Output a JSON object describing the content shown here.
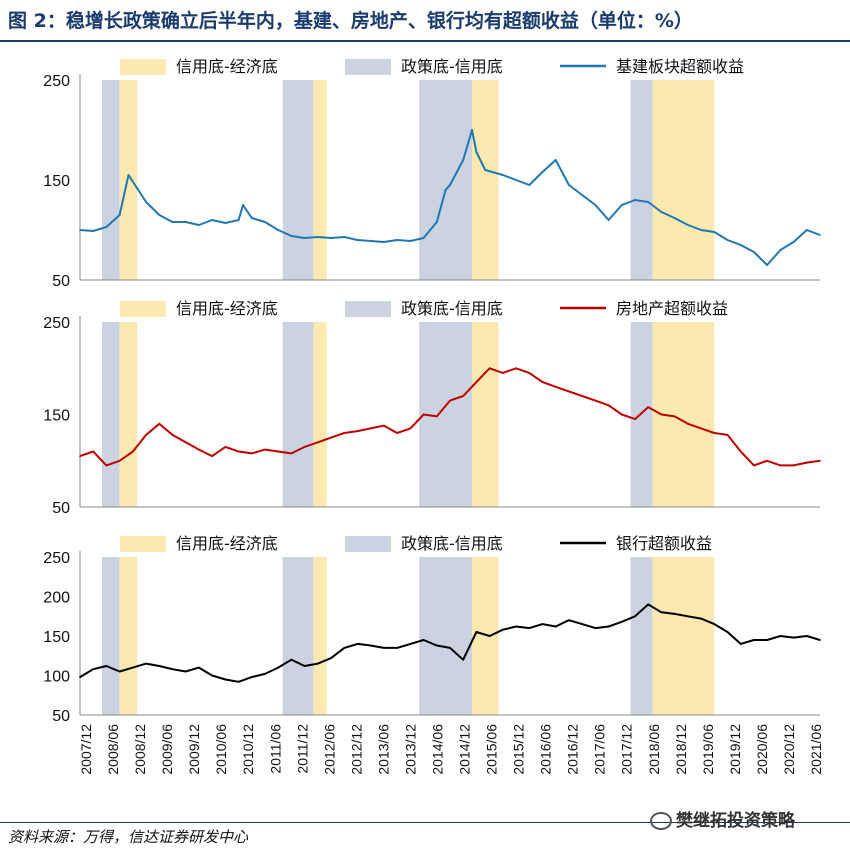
{
  "title": "图 2：稳增长政策确立后半年内，基建、房地产、银行均有超额收益（单位：%）",
  "source": "资料来源：万得，信达证券研发中心",
  "watermark": "樊继拓投资策略",
  "colors": {
    "title": "#1a3b6e",
    "credit_econ_band": "#fce9b0",
    "policy_credit_band": "#ccd3e0",
    "infra_line": "#1f77b4",
    "realestate_line": "#c00000",
    "bank_line": "#000000"
  },
  "chart_data": {
    "type": "line",
    "x_tick_labels": [
      "2007/12",
      "2008/06",
      "2008/12",
      "2009/06",
      "2009/12",
      "2010/06",
      "2010/12",
      "2011/06",
      "2011/12",
      "2012/06",
      "2012/12",
      "2013/06",
      "2013/12",
      "2014/06",
      "2014/12",
      "2015/06",
      "2015/12",
      "2016/06",
      "2016/12",
      "2017/06",
      "2017/12",
      "2018/06",
      "2018/12",
      "2019/06",
      "2019/12",
      "2020/06",
      "2020/12",
      "2021/06"
    ],
    "x_range": [
      "2007-12",
      "2021-12"
    ],
    "shaded_periods": {
      "policy_to_credit": [
        [
          "2008-05",
          "2008-09"
        ],
        [
          "2011-10",
          "2012-05"
        ],
        [
          "2014-05",
          "2015-05"
        ],
        [
          "2018-05",
          "2018-10"
        ]
      ],
      "credit_to_econ": [
        [
          "2008-09",
          "2009-01"
        ],
        [
          "2012-05",
          "2012-08"
        ],
        [
          "2015-05",
          "2015-11"
        ],
        [
          "2018-10",
          "2019-12"
        ]
      ]
    },
    "panels": [
      {
        "legend": [
          "信用底-经济底",
          "政策底-信用底",
          "基建板块超额收益"
        ],
        "yticks": [
          "250",
          "150",
          "50"
        ],
        "ylim": [
          50,
          250
        ],
        "series": {
          "name": "基建板块超额收益",
          "x": [
            "2007-12",
            "2008-03",
            "2008-06",
            "2008-09",
            "2008-11",
            "2009-03",
            "2009-06",
            "2009-09",
            "2009-12",
            "2010-03",
            "2010-06",
            "2010-09",
            "2010-12",
            "2011-01",
            "2011-03",
            "2011-06",
            "2011-09",
            "2011-12",
            "2012-03",
            "2012-06",
            "2012-09",
            "2012-12",
            "2013-03",
            "2013-06",
            "2013-09",
            "2013-12",
            "2014-03",
            "2014-06",
            "2014-09",
            "2014-11",
            "2014-12",
            "2015-03",
            "2015-05",
            "2015-06",
            "2015-08",
            "2015-12",
            "2016-03",
            "2016-06",
            "2016-09",
            "2016-12",
            "2017-03",
            "2017-06",
            "2017-09",
            "2017-12",
            "2018-03",
            "2018-06",
            "2018-09",
            "2018-12",
            "2019-03",
            "2019-06",
            "2019-09",
            "2019-12",
            "2020-03",
            "2020-06",
            "2020-09",
            "2020-12",
            "2021-03",
            "2021-06",
            "2021-09",
            "2021-12"
          ],
          "values": [
            100,
            99,
            103,
            115,
            155,
            128,
            115,
            108,
            108,
            105,
            110,
            107,
            110,
            125,
            112,
            108,
            100,
            94,
            92,
            93,
            92,
            93,
            90,
            89,
            88,
            90,
            89,
            92,
            108,
            140,
            145,
            170,
            200,
            178,
            160,
            155,
            150,
            145,
            158,
            170,
            145,
            135,
            125,
            110,
            125,
            130,
            128,
            118,
            112,
            105,
            100,
            98,
            90,
            85,
            78,
            65,
            80,
            88,
            100,
            95
          ]
        }
      },
      {
        "legend": [
          "信用底-经济底",
          "政策底-信用底",
          "房地产超额收益"
        ],
        "yticks": [
          "250",
          "150",
          "50"
        ],
        "ylim": [
          50,
          250
        ],
        "series": {
          "name": "房地产超额收益",
          "x": [
            "2007-12",
            "2008-03",
            "2008-06",
            "2008-09",
            "2008-12",
            "2009-03",
            "2009-06",
            "2009-09",
            "2009-12",
            "2010-03",
            "2010-06",
            "2010-09",
            "2010-12",
            "2011-03",
            "2011-06",
            "2011-09",
            "2011-12",
            "2012-03",
            "2012-06",
            "2012-09",
            "2012-12",
            "2013-03",
            "2013-06",
            "2013-09",
            "2013-12",
            "2014-03",
            "2014-06",
            "2014-09",
            "2014-12",
            "2015-03",
            "2015-06",
            "2015-09",
            "2015-12",
            "2016-03",
            "2016-06",
            "2016-09",
            "2016-12",
            "2017-03",
            "2017-06",
            "2017-09",
            "2017-12",
            "2018-03",
            "2018-06",
            "2018-09",
            "2018-12",
            "2019-03",
            "2019-06",
            "2019-09",
            "2019-12",
            "2020-03",
            "2020-06",
            "2020-09",
            "2020-12",
            "2021-03",
            "2021-06",
            "2021-09",
            "2021-12"
          ],
          "values": [
            105,
            110,
            95,
            100,
            110,
            128,
            140,
            128,
            120,
            112,
            105,
            115,
            110,
            108,
            112,
            110,
            108,
            115,
            120,
            125,
            130,
            132,
            135,
            138,
            130,
            135,
            150,
            148,
            165,
            170,
            185,
            200,
            195,
            200,
            195,
            185,
            180,
            175,
            170,
            165,
            160,
            150,
            145,
            158,
            150,
            148,
            140,
            135,
            130,
            128,
            110,
            95,
            100,
            95,
            95,
            98,
            100
          ]
        }
      },
      {
        "legend": [
          "信用底-经济底",
          "政策底-信用底",
          "银行超额收益"
        ],
        "yticks": [
          "250",
          "200",
          "150",
          "100",
          "50"
        ],
        "ylim": [
          50,
          250
        ],
        "series": {
          "name": "银行超额收益",
          "x": [
            "2007-12",
            "2008-03",
            "2008-06",
            "2008-09",
            "2008-12",
            "2009-03",
            "2009-06",
            "2009-09",
            "2009-12",
            "2010-03",
            "2010-06",
            "2010-09",
            "2010-12",
            "2011-03",
            "2011-06",
            "2011-09",
            "2011-12",
            "2012-03",
            "2012-06",
            "2012-09",
            "2012-12",
            "2013-03",
            "2013-06",
            "2013-09",
            "2013-12",
            "2014-03",
            "2014-06",
            "2014-09",
            "2014-12",
            "2015-03",
            "2015-06",
            "2015-09",
            "2015-12",
            "2016-03",
            "2016-06",
            "2016-09",
            "2016-12",
            "2017-03",
            "2017-06",
            "2017-09",
            "2017-12",
            "2018-03",
            "2018-06",
            "2018-09",
            "2018-12",
            "2019-03",
            "2019-06",
            "2019-09",
            "2019-12",
            "2020-03",
            "2020-06",
            "2020-09",
            "2020-12",
            "2021-03",
            "2021-06",
            "2021-09",
            "2021-12"
          ],
          "values": [
            98,
            108,
            112,
            105,
            110,
            115,
            112,
            108,
            105,
            110,
            100,
            95,
            92,
            98,
            102,
            110,
            120,
            112,
            115,
            122,
            135,
            140,
            138,
            135,
            135,
            140,
            145,
            138,
            135,
            120,
            155,
            150,
            158,
            162,
            160,
            165,
            162,
            170,
            165,
            160,
            162,
            168,
            175,
            190,
            180,
            178,
            175,
            172,
            165,
            155,
            140,
            145,
            145,
            150,
            148,
            150,
            145
          ]
        }
      }
    ]
  }
}
